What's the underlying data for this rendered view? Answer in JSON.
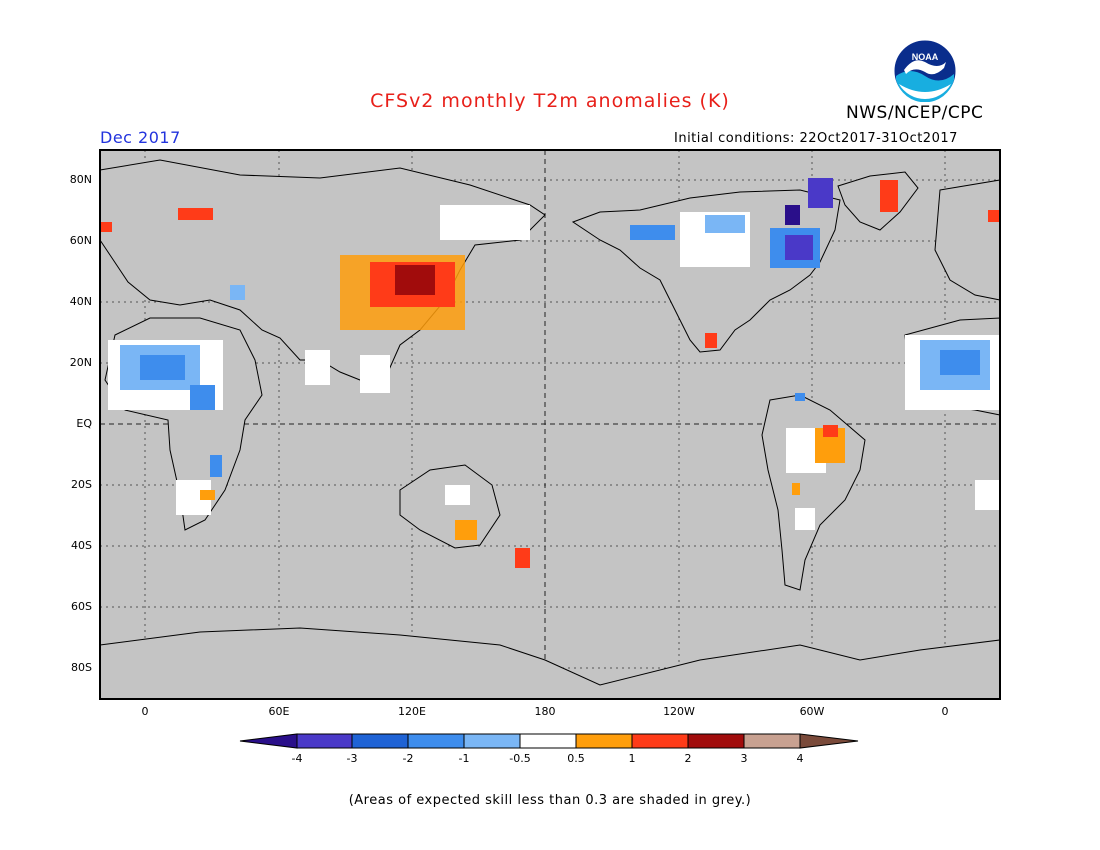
{
  "title": "CFSv2 monthly T2m anomalies (K)",
  "agency": "NWS/NCEP/CPC",
  "logo_text": "NOAA",
  "valid_month": "Dec 2017",
  "initial_conditions": "Initial conditions: 22Oct2017-31Oct2017",
  "note": "(Areas of expected skill less than 0.3 are shaded in grey.)",
  "lat_labels": [
    "80N",
    "60N",
    "40N",
    "20N",
    "EQ",
    "20S",
    "40S",
    "60S",
    "80S"
  ],
  "lon_labels": [
    "0",
    "60E",
    "120E",
    "180",
    "120W",
    "60W",
    "0"
  ],
  "legend": {
    "tick_labels": [
      "-4",
      "-3",
      "-2",
      "-1",
      "-0.5",
      "0.5",
      "1",
      "2",
      "3",
      "4"
    ],
    "colors": [
      "#2a0f8a",
      "#4a39c8",
      "#1f63d5",
      "#3e8ded",
      "#7ab6f5",
      "#ffffff",
      "#ff9e0c",
      "#ff3b18",
      "#a10c0c",
      "#c8a191",
      "#7a4a3a"
    ]
  },
  "colors": {
    "ocean": "#c4c4c4",
    "coast": "#000000",
    "title": "#e8201a",
    "valid_month": "#2233dd"
  }
}
